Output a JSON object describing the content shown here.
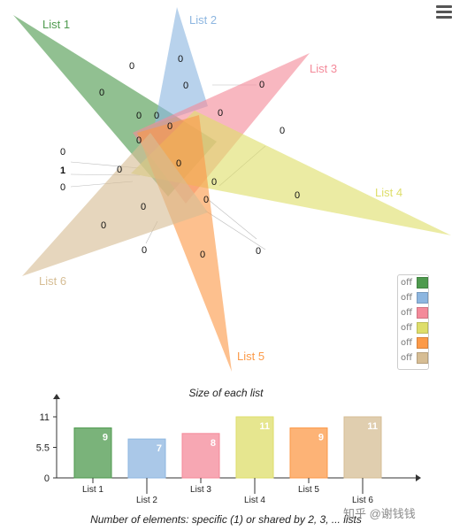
{
  "menu": {
    "icon": "hamburger-icon"
  },
  "chart_data": [
    {
      "type": "venn",
      "sets": [
        {
          "name": "List 1",
          "color": "#4e9a4e"
        },
        {
          "name": "List 2",
          "color": "#8db6e0"
        },
        {
          "name": "List 3",
          "color": "#f48a9a"
        },
        {
          "name": "List 4",
          "color": "#dede6a"
        },
        {
          "name": "List 5",
          "color": "#fc9a48"
        },
        {
          "name": "List 6",
          "color": "#d6bd94"
        }
      ],
      "counts": [
        "0",
        "0",
        "0",
        "0",
        "0",
        "0",
        "0",
        "0",
        "0",
        "0",
        "0",
        "0",
        "1",
        "0",
        "0",
        "0",
        "0",
        "0",
        "0",
        "0",
        "0",
        "0",
        "0",
        "0"
      ]
    },
    {
      "type": "bar",
      "title": "Size of each list",
      "categories": [
        "List 1",
        "List 2",
        "List 3",
        "List 4",
        "List 5",
        "List 6"
      ],
      "values": [
        9,
        7,
        8,
        11,
        9,
        11
      ],
      "yticks": [
        "0",
        "5.5",
        "11"
      ],
      "ylim": [
        0,
        11
      ],
      "colors": [
        "#4e9a4e",
        "#8db6e0",
        "#f48a9a",
        "#dede6a",
        "#fc9a48",
        "#d6bd94"
      ]
    }
  ],
  "legend": {
    "items": [
      {
        "label": "off",
        "color": "#4e9a4e"
      },
      {
        "label": "off",
        "color": "#8db6e0"
      },
      {
        "label": "off",
        "color": "#f48a9a"
      },
      {
        "label": "off",
        "color": "#dede6a"
      },
      {
        "label": "off",
        "color": "#fc9a48"
      },
      {
        "label": "off",
        "color": "#d6bd94"
      }
    ]
  },
  "footer": "Number of elements: specific (1) or shared by 2, 3, ... lists",
  "watermark": "知乎 @谢钱钱"
}
